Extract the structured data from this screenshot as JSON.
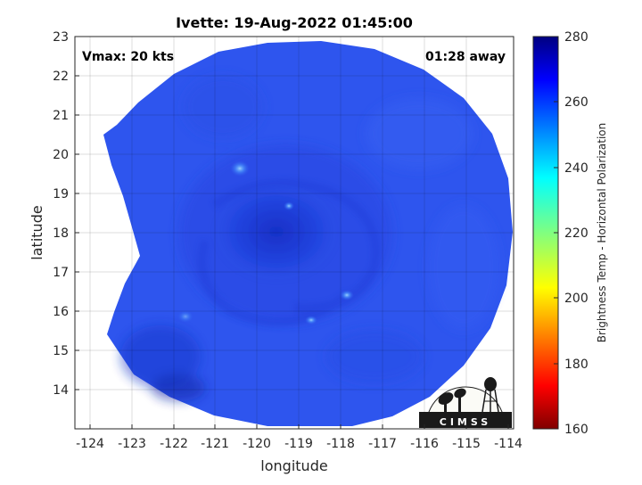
{
  "title": "Ivette: 19-Aug-2022 01:45:00",
  "vmax_label": "Vmax: 20 kts",
  "away_label": "01:28 away",
  "xlabel": "longitude",
  "ylabel": "latitude",
  "x_ticks": [
    "-124",
    "-123",
    "-122",
    "-121",
    "-120",
    "-119",
    "-118",
    "-117",
    "-116",
    "-115",
    "-114"
  ],
  "y_ticks": [
    "23",
    "22",
    "21",
    "20",
    "19",
    "18",
    "17",
    "16",
    "15",
    "14"
  ],
  "colorbar": {
    "label": "Brightness Temp - Horizontal Polarization",
    "ticks": [
      "280",
      "260",
      "240",
      "220",
      "200",
      "180",
      "160"
    ],
    "colormap": "jet",
    "range": [
      160,
      280
    ]
  },
  "map": {
    "xlim": [
      -124.4,
      -113.9
    ],
    "ylim": [
      13.0,
      23.0
    ],
    "swath_center": [
      -119.0,
      18.0
    ],
    "storm_center": [
      -119.1,
      17.9
    ],
    "background_color": "#2f55ee",
    "grid": true
  },
  "logo": {
    "text": "CIMSS"
  }
}
